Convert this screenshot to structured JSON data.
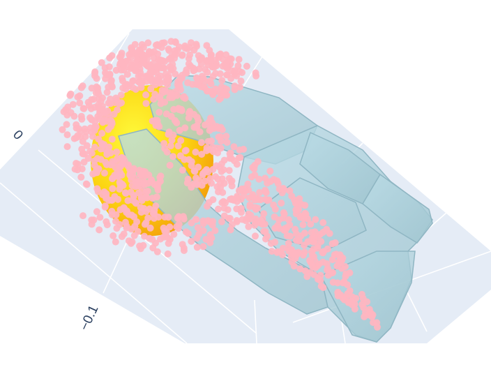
{
  "axis_ticks": [
    {
      "label": "0"
    },
    {
      "label": "−0.1"
    }
  ],
  "colors": {
    "background": "#ffffff",
    "floor": "#e5ecf6",
    "grid": "#ffffff",
    "tick_text": "#2a3f5f",
    "points": "#ffb6c1",
    "gripper": "#a8cdd8",
    "gripper_edge": "#8fb6c3",
    "sphere_light": "#fff02a",
    "sphere_dark": "#f58a07"
  },
  "icons": {
    "points": "point-cloud",
    "gripper": "gripper-mesh",
    "object": "sphere-mesh"
  }
}
